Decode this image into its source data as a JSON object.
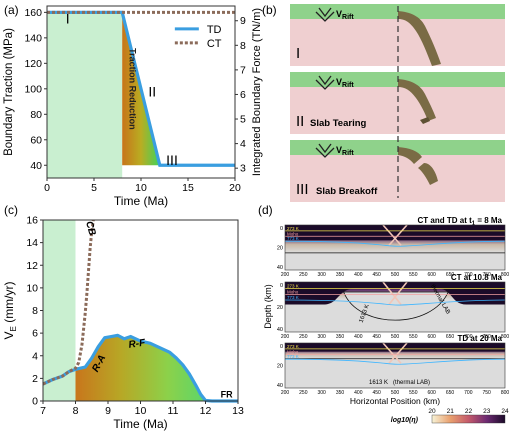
{
  "panels": {
    "a": {
      "label": "(a)",
      "chart_data": {
        "type": "line",
        "xlabel": "Time (Ma)",
        "ylabel": "Boundary Traction (MPa)",
        "y2label": "Integrated Boundary Force (TN/m)",
        "xlim": [
          0,
          20
        ],
        "ylim": [
          30,
          165
        ],
        "y2lim": [
          2.6,
          9.6
        ],
        "x_ticks": [
          0,
          5,
          10,
          15,
          20
        ],
        "y_ticks": [
          40,
          60,
          80,
          100,
          120,
          140,
          160
        ],
        "y2_ticks": [
          3,
          4,
          5,
          6,
          7,
          8,
          9
        ],
        "series": [
          {
            "name": "TD",
            "color": "#3a9ee0",
            "style": "solid",
            "x": [
              0,
              8,
              12,
              20
            ],
            "y": [
              160,
              160,
              40,
              40
            ]
          },
          {
            "name": "CT",
            "color": "#8b6b5a",
            "style": "dotted",
            "x": [
              0,
              20
            ],
            "y": [
              160,
              160
            ]
          }
        ],
        "shaded_x": [
          0,
          8
        ],
        "legend": "top-right",
        "phase_labels": [
          {
            "text": "I",
            "x": 2.2,
            "y": 155
          },
          {
            "text": "II",
            "x": 11.2,
            "y": 98
          },
          {
            "text": "III",
            "x": 13.3,
            "y": 44
          }
        ],
        "annotation": "Traction Reduction"
      }
    },
    "b": {
      "label": "(b)",
      "rift_label": "V",
      "rift_sub": "Rift",
      "stages": [
        {
          "numeral": "I",
          "text": ""
        },
        {
          "numeral": "II",
          "text": "Slab Tearing"
        },
        {
          "numeral": "III",
          "text": "Slab Breakoff"
        }
      ]
    },
    "c": {
      "label": "(c)",
      "chart_data": {
        "type": "line",
        "xlabel": "Time (Ma)",
        "ylabel": "V",
        "ylabel_sub": "E",
        "ylabel_unit": " (mm/yr)",
        "xlim": [
          7,
          13
        ],
        "ylim": [
          0,
          16
        ],
        "x_ticks": [
          7,
          8,
          9,
          10,
          11,
          12,
          13
        ],
        "y_ticks": [
          0,
          2,
          4,
          6,
          8,
          10,
          12,
          14,
          16
        ],
        "shaded_x": [
          7,
          8
        ],
        "series": [
          {
            "name": "TD",
            "color": "#3a9ee0",
            "style": "solid",
            "x": [
              7.0,
              7.3,
              7.6,
              7.8,
              8.0,
              8.3,
              8.5,
              8.7,
              8.9,
              9.1,
              9.3,
              9.5,
              9.7,
              10.0,
              10.3,
              10.6,
              10.9,
              11.1,
              11.3,
              11.5,
              11.7,
              11.85,
              12.0,
              12.2,
              13.0
            ],
            "y": [
              1.5,
              1.9,
              2.2,
              2.6,
              2.8,
              3.0,
              3.8,
              4.8,
              5.6,
              5.7,
              5.8,
              5.5,
              5.7,
              5.3,
              5.1,
              4.7,
              4.3,
              3.8,
              3.2,
              2.4,
              1.4,
              0.6,
              0.05,
              0,
              0
            ]
          },
          {
            "name": "CT",
            "color": "#8b6b5a",
            "style": "dotted",
            "x": [
              7.0,
              7.3,
              7.6,
              7.8,
              8.0,
              8.1,
              8.2,
              8.3,
              8.35,
              8.4,
              8.45,
              8.5,
              8.55
            ],
            "y": [
              1.5,
              1.9,
              2.2,
              2.6,
              2.9,
              3.4,
              5.0,
              7.8,
              9.5,
              11.5,
              13.5,
              15.0,
              16.0
            ]
          }
        ],
        "annotations": [
          {
            "text": "CB",
            "x": 8.38,
            "y": 15.2
          },
          {
            "text": "R-A",
            "x": 8.8,
            "y": 3.2
          },
          {
            "text": "R-F",
            "x": 9.9,
            "y": 4.8
          },
          {
            "text": "FR",
            "x": 12.65,
            "y": 0.3
          }
        ]
      }
    },
    "d": {
      "label": "(d)",
      "panel_titles": [
        {
          "pre": "CT and TD at t",
          "sub": "1",
          "post": " = 8 Ma"
        },
        {
          "pre": "CT at 10.8 Ma",
          "sub": "",
          "post": ""
        },
        {
          "pre": "TD at 20 Ma",
          "sub": "",
          "post": ""
        }
      ],
      "ylabel": "Depth (km)",
      "xlabel": "Horizontal Position (km)",
      "x_ticks": [
        200,
        250,
        300,
        350,
        400,
        450,
        500,
        550,
        600,
        650,
        700,
        750,
        800
      ],
      "y_ticks": [
        0,
        20,
        40
      ],
      "lines": [
        "273 K",
        "Moho",
        "773 K"
      ],
      "iso_labels": [
        {
          "panel": 1,
          "text": "1613 K"
        },
        {
          "panel": 1,
          "text": "thermal LAB"
        },
        {
          "panel": 2,
          "text": "1613 K"
        },
        {
          "panel": 2,
          "text": "(thermal LAB)"
        }
      ],
      "colorbar": {
        "label": "log10(η)",
        "ticks": [
          20,
          21,
          22,
          23,
          24
        ],
        "colors": [
          "#f7f3d6",
          "#e9a06f",
          "#c45a6b",
          "#6d2a72",
          "#1b0b29"
        ]
      }
    }
  }
}
